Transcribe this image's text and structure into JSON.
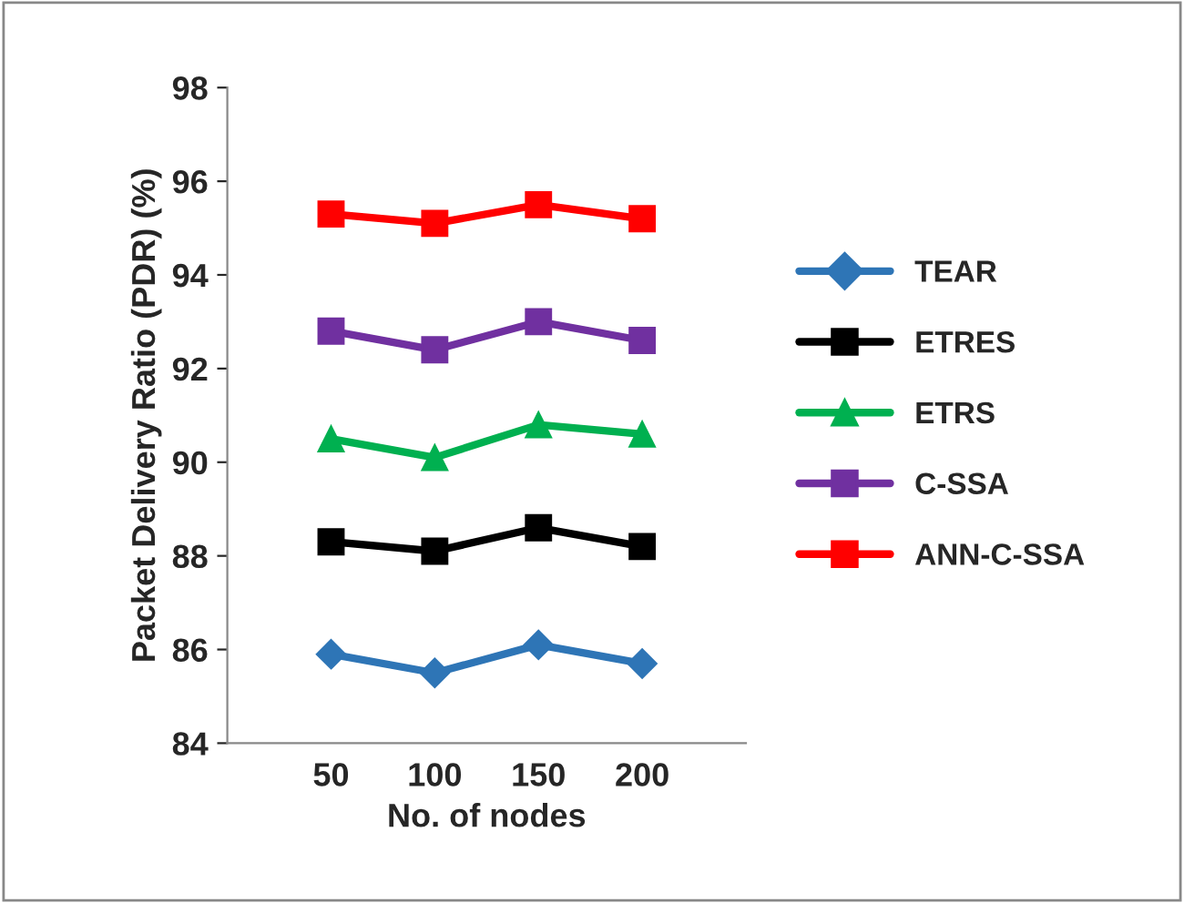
{
  "chart_data": {
    "type": "line",
    "xlabel": "No. of nodes",
    "ylabel": "Packet Delivery Ratio (PDR) (%)",
    "x": [
      50,
      100,
      150,
      200
    ],
    "xlim": [
      0,
      250
    ],
    "xticks": [
      50,
      100,
      150,
      200
    ],
    "ylim": [
      84,
      98
    ],
    "yticks": [
      84,
      86,
      88,
      90,
      92,
      94,
      96,
      98
    ],
    "grid": false,
    "legend": "right",
    "series": [
      {
        "name": "TEAR",
        "color": "#2e75b6",
        "marker": "diamond",
        "values": [
          85.9,
          85.5,
          86.1,
          85.7
        ]
      },
      {
        "name": "ETRES",
        "color": "#000000",
        "marker": "square",
        "values": [
          88.3,
          88.1,
          88.6,
          88.2
        ]
      },
      {
        "name": "ETRS",
        "color": "#00b050",
        "marker": "triangle",
        "values": [
          90.5,
          90.1,
          90.8,
          90.6
        ]
      },
      {
        "name": "C-SSA",
        "color": "#7030a0",
        "marker": "square",
        "values": [
          92.8,
          92.4,
          93.0,
          92.6
        ]
      },
      {
        "name": "ANN-C-SSA",
        "color": "#ff0000",
        "marker": "square",
        "values": [
          95.3,
          95.1,
          95.5,
          95.2
        ]
      }
    ]
  }
}
